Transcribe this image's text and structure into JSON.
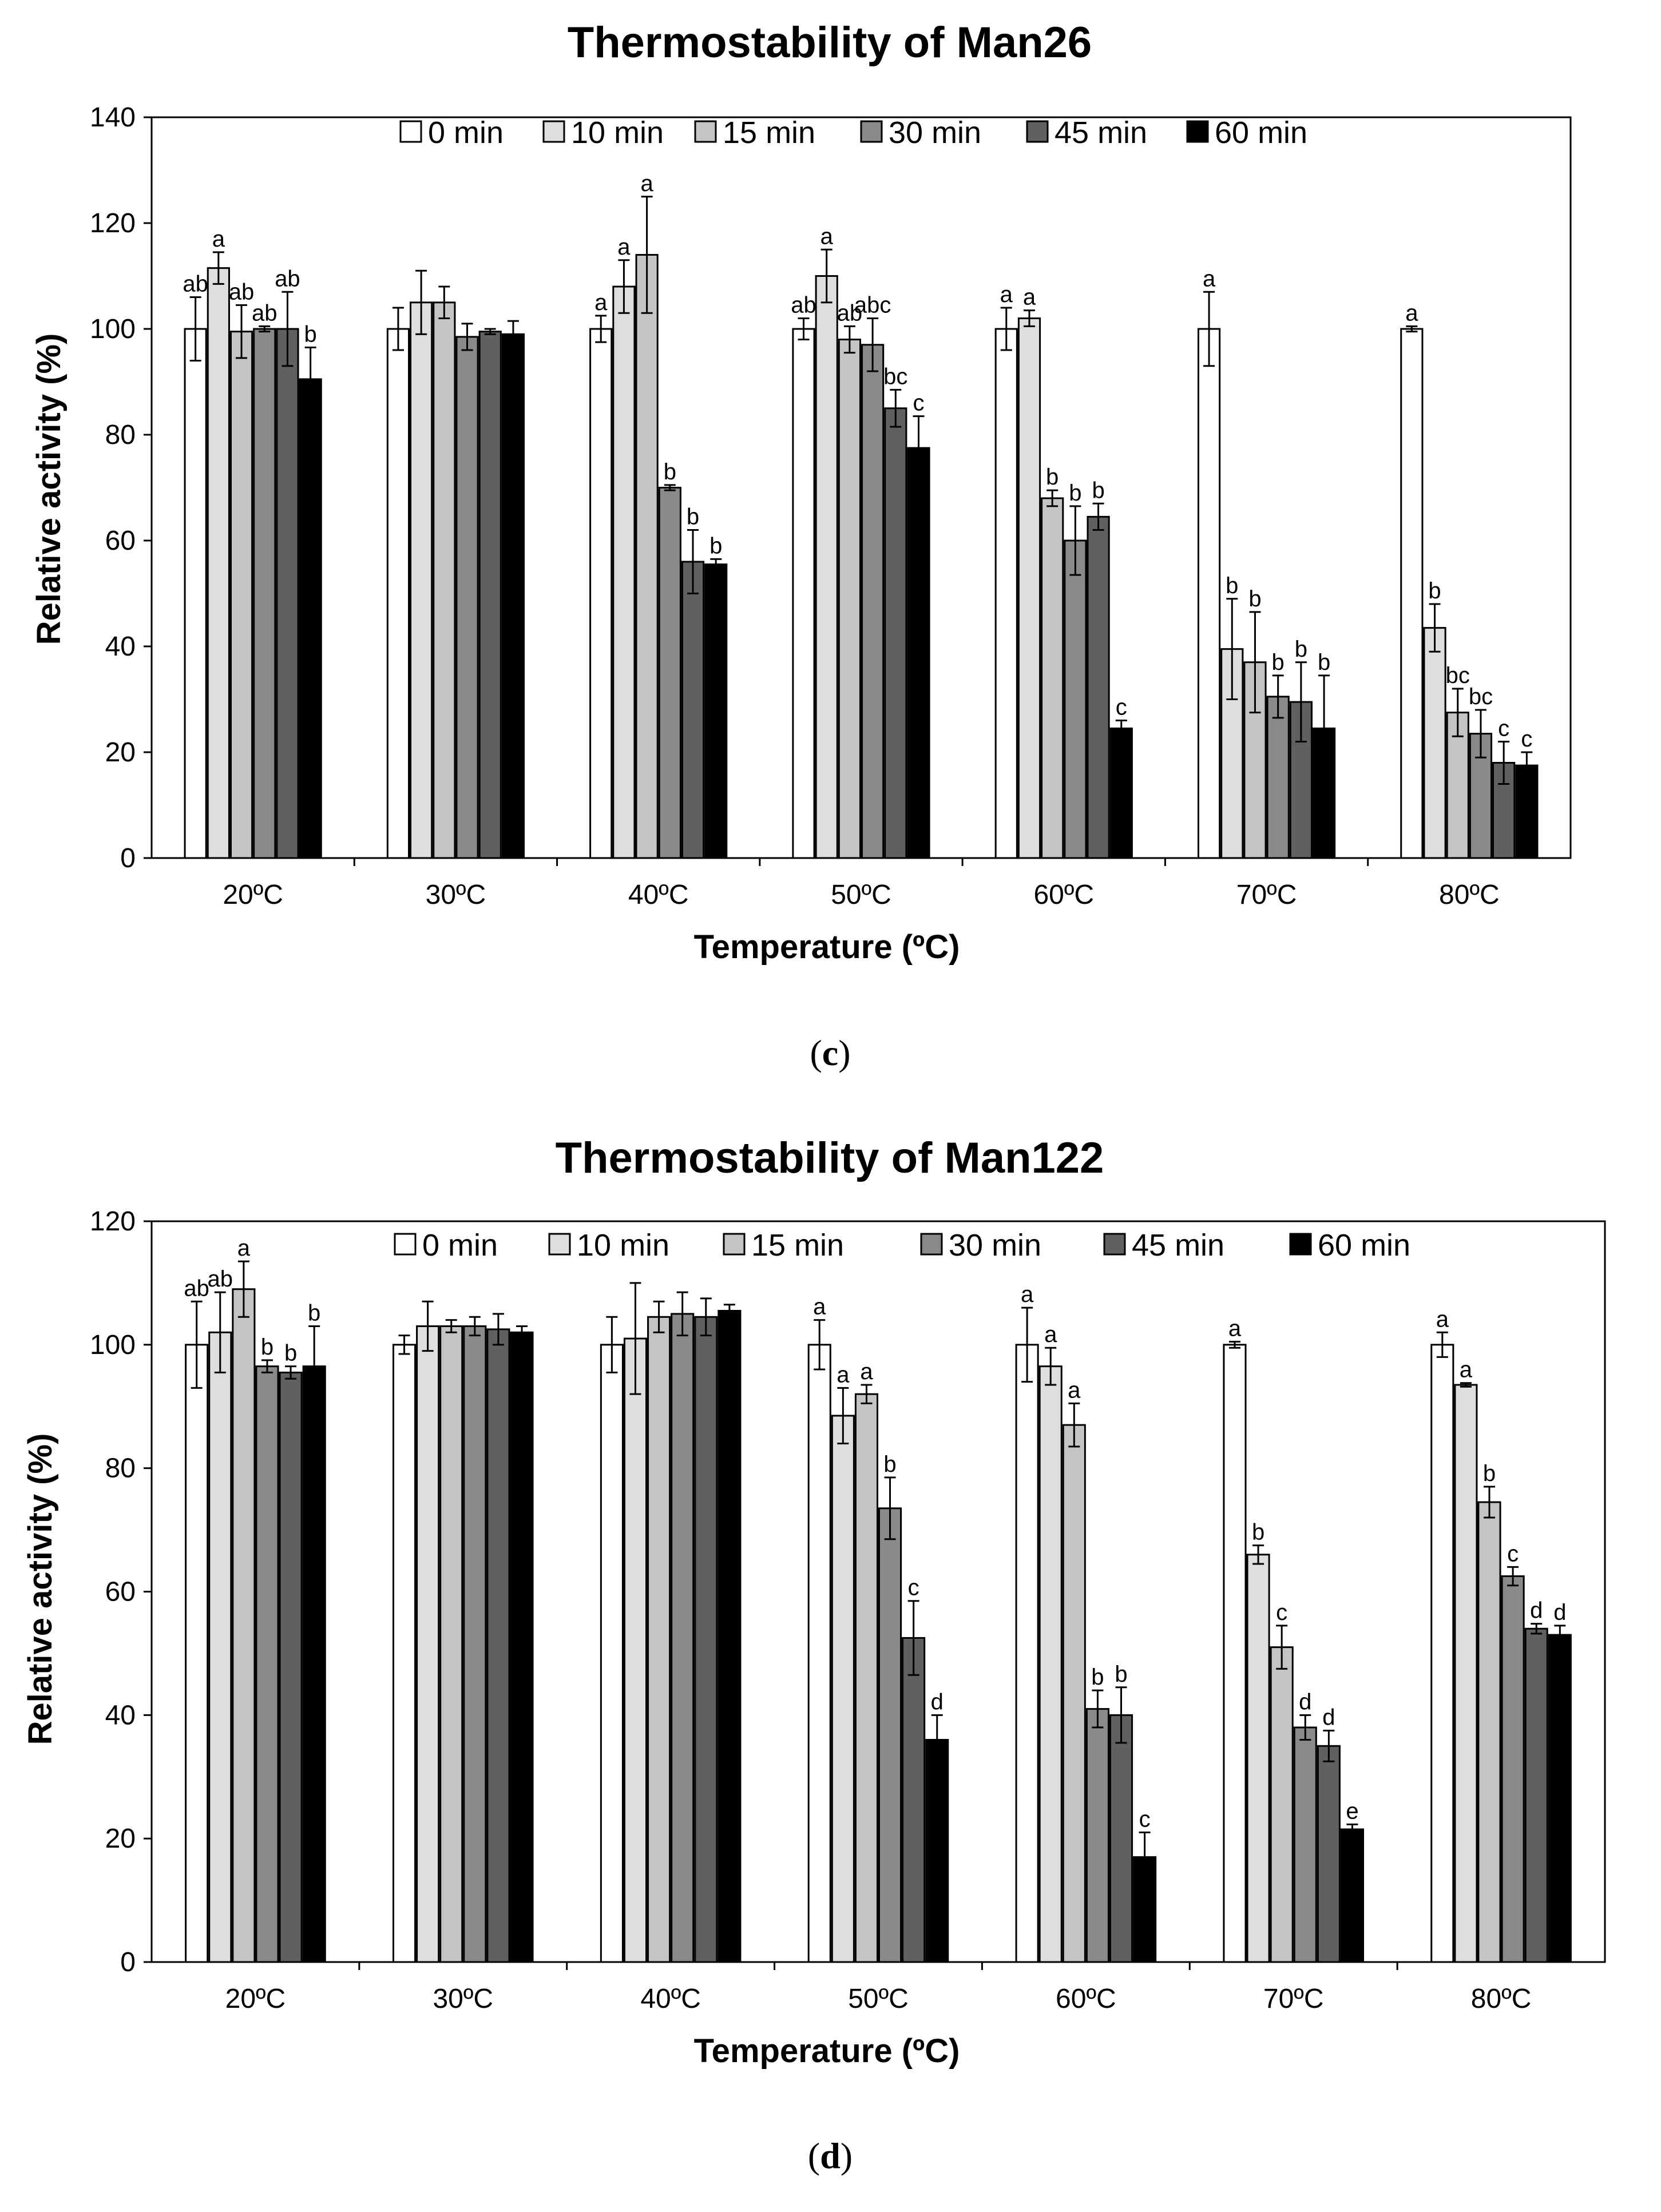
{
  "colors": {
    "0 min": "#ffffff",
    "10 min": "#dedede",
    "15 min": "#c4c4c4",
    "30 min": "#8a8a8a",
    "45 min": "#606060",
    "60 min": "#000000"
  },
  "panels": [
    {
      "letter": "c",
      "open": "(",
      "close": ")"
    },
    {
      "letter": "d",
      "open": "(",
      "close": ")"
    }
  ],
  "chart_data": [
    {
      "type": "bar",
      "title": "Thermostability of Man26",
      "xlabel": "Temperature (ºC)",
      "ylabel": "Relative activity (%)",
      "ylim": [
        0,
        140
      ],
      "yticks": [
        "0",
        "20",
        "40",
        "60",
        "80",
        "100",
        "120",
        "140"
      ],
      "legend_position": "top",
      "categories": [
        "20ºC",
        "30ºC",
        "40ºC",
        "50ºC",
        "60ºC",
        "70ºC",
        "80ºC"
      ],
      "series": [
        {
          "name": "0 min",
          "values": [
            100,
            100,
            100,
            100,
            100,
            100,
            100
          ],
          "errors": [
            6,
            4,
            2.5,
            2,
            4,
            7,
            0.5
          ],
          "labels": [
            "ab",
            "",
            "a",
            "ab",
            "a",
            "a",
            "a"
          ]
        },
        {
          "name": "10 min",
          "values": [
            111.5,
            105,
            108,
            110,
            102,
            39.5,
            43.5
          ],
          "errors": [
            3,
            6,
            5,
            5,
            1.5,
            9.5,
            4.5
          ],
          "labels": [
            "a",
            "",
            "a",
            "a",
            "a",
            "b",
            "b"
          ]
        },
        {
          "name": "15 min",
          "values": [
            99.5,
            105,
            114,
            98,
            68,
            37,
            27.5
          ],
          "errors": [
            5,
            3,
            11,
            2.5,
            1.5,
            9.5,
            4.5
          ],
          "labels": [
            "ab",
            "",
            "a",
            "ab",
            "b",
            "b",
            "bc"
          ]
        },
        {
          "name": "30 min",
          "values": [
            100,
            98.5,
            70,
            97,
            60,
            30.5,
            23.5
          ],
          "errors": [
            0.5,
            2.5,
            0.5,
            5,
            6.5,
            4,
            4.5
          ],
          "labels": [
            "ab",
            "",
            "b",
            "abc",
            "b",
            "b",
            "bc"
          ]
        },
        {
          "name": "45 min",
          "values": [
            100,
            99.5,
            56,
            85,
            64.5,
            29.5,
            18
          ],
          "errors": [
            7,
            0.5,
            6,
            3.5,
            2.5,
            7.5,
            4
          ],
          "labels": [
            "ab",
            "",
            "b",
            "bc",
            "b",
            "b",
            "c"
          ]
        },
        {
          "name": "60 min",
          "values": [
            90.5,
            99,
            55.5,
            77.5,
            24.5,
            24.5,
            17.5
          ],
          "errors": [
            6,
            2.5,
            1,
            6,
            1.5,
            10,
            2.5
          ],
          "labels": [
            "b",
            "",
            "b",
            "c",
            "c",
            "b",
            "c"
          ]
        }
      ]
    },
    {
      "type": "bar",
      "title": "Thermostability of Man122",
      "xlabel": "Temperature (ºC)",
      "ylabel": "Relative activity (%)",
      "ylim": [
        0,
        120
      ],
      "yticks": [
        "0",
        "20",
        "40",
        "60",
        "80",
        "100",
        "120"
      ],
      "legend_position": "top",
      "categories": [
        "20ºC",
        "30ºC",
        "40ºC",
        "50ºC",
        "60ºC",
        "70ºC",
        "80ºC"
      ],
      "series": [
        {
          "name": "0 min",
          "values": [
            100,
            100,
            100,
            100,
            100,
            100,
            100
          ],
          "errors": [
            7,
            1.5,
            4.5,
            4,
            6,
            0.5,
            2
          ],
          "labels": [
            "ab",
            "",
            "",
            "a",
            "a",
            "a",
            "a"
          ]
        },
        {
          "name": "10 min",
          "values": [
            102,
            103,
            101,
            88.5,
            96.5,
            66,
            93.5
          ],
          "errors": [
            6.5,
            4,
            9,
            4.5,
            3,
            1.5,
            0.3
          ],
          "labels": [
            "ab",
            "",
            "",
            "a",
            "a",
            "b",
            "a"
          ]
        },
        {
          "name": "15 min",
          "values": [
            109,
            103,
            104.5,
            92,
            87,
            51,
            74.5
          ],
          "errors": [
            4.5,
            1,
            2.5,
            1.5,
            3.5,
            3.5,
            2.5
          ],
          "labels": [
            "a",
            "",
            "",
            "a",
            "a",
            "c",
            "b"
          ]
        },
        {
          "name": "30 min",
          "values": [
            96.5,
            103,
            105,
            73.5,
            41,
            38,
            62.5
          ],
          "errors": [
            1,
            1.5,
            3.5,
            5,
            3,
            2,
            1.5
          ],
          "labels": [
            "b",
            "",
            "",
            "b",
            "b",
            "d",
            "c"
          ]
        },
        {
          "name": "45 min",
          "values": [
            95.5,
            102.5,
            104.5,
            52.5,
            40,
            35,
            54
          ],
          "errors": [
            1,
            2.5,
            3,
            6,
            4.5,
            2.5,
            0.8
          ],
          "labels": [
            "b",
            "",
            "",
            "c",
            "b",
            "d",
            "d"
          ]
        },
        {
          "name": "60 min",
          "values": [
            96.5,
            102,
            105.5,
            36,
            17,
            21.5,
            53
          ],
          "errors": [
            6.5,
            1,
            1,
            4,
            4,
            0.8,
            1.5
          ],
          "labels": [
            "b",
            "",
            "",
            "d",
            "c",
            "e",
            "d"
          ]
        }
      ]
    }
  ]
}
